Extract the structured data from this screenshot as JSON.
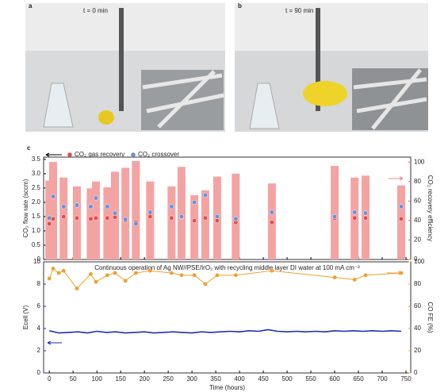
{
  "panels": [
    {
      "label": "a",
      "caption": "t = 0 min"
    },
    {
      "label": "b",
      "caption": "t = 90 min"
    }
  ],
  "panel_label": "c",
  "chart_data": [
    {
      "type": "bar",
      "ylabel": "CO₂ flow rate (sccm)",
      "y2label": "CO₂ recovery efficiency",
      "y_color": "#000000",
      "y2_color": "#e8605a",
      "x": [
        0,
        8,
        30,
        58,
        87,
        98,
        122,
        138,
        160,
        182,
        212,
        257,
        278,
        305,
        328,
        353,
        392,
        468,
        600,
        642,
        665,
        740
      ],
      "xlim": [
        -12,
        760
      ],
      "ylim": [
        0,
        3.58
      ],
      "yticks": [
        0,
        0.5,
        {
          "value": 1,
          "label": "1.0"
        },
        1.5,
        {
          "value": 2,
          "label": "2.0"
        },
        2.5,
        {
          "value": 3,
          "label": "3.0"
        },
        3.5
      ],
      "y2lim": [
        0,
        105
      ],
      "y2ticks": [
        0,
        20,
        40,
        60,
        80,
        100
      ],
      "series": [
        {
          "color": "#f4a3a3",
          "axis": "y2",
          "values": [
            81,
            100,
            84,
            75,
            73,
            80,
            74,
            90,
            94,
            101,
            80,
            75,
            95,
            66,
            71,
            85,
            88,
            78,
            96,
            84,
            86,
            76
          ]
        },
        {
          "name": "CO₂ gas recovery",
          "color": "#e84b4b",
          "values": [
            1.25,
            1.42,
            1.5,
            1.45,
            1.42,
            1.45,
            1.45,
            1.48,
            1.36,
            1.3,
            1.5,
            1.45,
            1.48,
            1.36,
            1.45,
            1.36,
            1.3,
            1.3,
            1.45,
            1.45,
            1.45,
            1.42
          ]
        },
        {
          "name": "CO₂ crossover",
          "color": "#6f90d8",
          "values": [
            1.45,
            2.2,
            1.85,
            1.9,
            1.85,
            2.15,
            1.85,
            1.62,
            1.4,
            1.25,
            1.65,
            1.85,
            1.5,
            2.0,
            2.25,
            1.5,
            1.42,
            1.65,
            1.5,
            1.65,
            1.62,
            1.85
          ]
        }
      ]
    },
    {
      "type": "line",
      "annotation": "Continuous operation of Ag NW//PSE/IrO₂ with recycling middle layer DI water at 100 mA cm⁻²",
      "xlabel": "Time (hours)",
      "ylabel": "Ecell (V)",
      "y2label": "CO FE (%)",
      "y_color": "#1c2fb8",
      "y2_color": "#f0a030",
      "xlim": [
        -12,
        760
      ],
      "xticks": [
        0,
        50,
        100,
        150,
        200,
        250,
        300,
        350,
        400,
        450,
        500,
        550,
        600,
        650,
        700,
        750
      ],
      "ylim": [
        0,
        10
      ],
      "yticks": [
        0,
        2,
        4,
        6,
        8,
        10
      ],
      "y2lim": [
        0,
        100
      ],
      "y2ticks": [
        0,
        20,
        40,
        60,
        80,
        100
      ],
      "series": [
        {
          "color": "#1c2fb8",
          "axis": "y",
          "x": [
            0,
            20,
            40,
            60,
            80,
            100,
            120,
            140,
            160,
            180,
            200,
            220,
            240,
            260,
            280,
            300,
            320,
            340,
            360,
            380,
            400,
            420,
            440,
            460,
            480,
            500,
            520,
            540,
            560,
            580,
            600,
            620,
            640,
            660,
            680,
            700,
            720,
            740
          ],
          "values": [
            3.8,
            3.6,
            3.65,
            3.7,
            3.6,
            3.75,
            3.65,
            3.7,
            3.6,
            3.65,
            3.7,
            3.6,
            3.65,
            3.7,
            3.65,
            3.6,
            3.7,
            3.65,
            3.7,
            3.75,
            3.7,
            3.8,
            3.75,
            3.9,
            3.75,
            3.7,
            3.75,
            3.7,
            3.75,
            3.7,
            3.8,
            3.75,
            3.8,
            3.75,
            3.8,
            3.75,
            3.8,
            3.75
          ]
        },
        {
          "color": "#f0a030",
          "axis": "y2",
          "x": [
            0,
            8,
            20,
            30,
            58,
            87,
            98,
            122,
            138,
            160,
            182,
            212,
            257,
            278,
            305,
            328,
            353,
            392,
            468,
            600,
            642,
            665,
            740
          ],
          "values": [
            85,
            94,
            90,
            92,
            76,
            89,
            82,
            88,
            90,
            83,
            90,
            92,
            90,
            88,
            88,
            80,
            88,
            88,
            92,
            86,
            84,
            88,
            90
          ]
        }
      ]
    }
  ]
}
